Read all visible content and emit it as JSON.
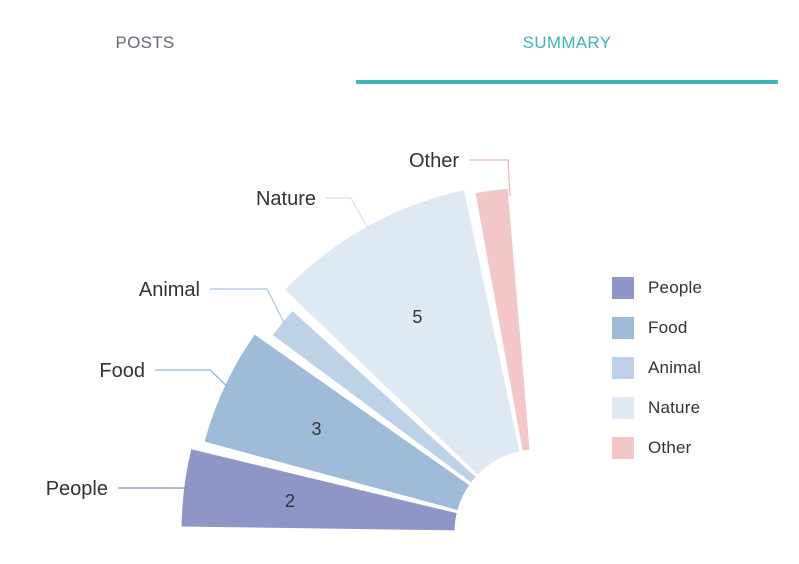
{
  "tabs": [
    {
      "label": "POSTS",
      "active": false
    },
    {
      "label": "SUMMARY",
      "active": true
    }
  ],
  "colors": {
    "accent": "#3fb4b6",
    "people": "#8e96c8",
    "food": "#9ebbd9",
    "animal": "#bdd2e6",
    "nature": "#dfe9f3",
    "other": "#f3c7c7"
  },
  "chart_data": {
    "type": "pie",
    "variant": "partial-arc radial sectors",
    "categories": [
      "People",
      "Food",
      "Animal",
      "Nature",
      "Other"
    ],
    "values": [
      2,
      3,
      1,
      5,
      1
    ],
    "data_labels": [
      "2",
      "3",
      "",
      "5",
      ""
    ],
    "legend": {
      "position": "right",
      "entries": [
        "People",
        "Food",
        "Animal",
        "Nature",
        "Other"
      ]
    }
  }
}
